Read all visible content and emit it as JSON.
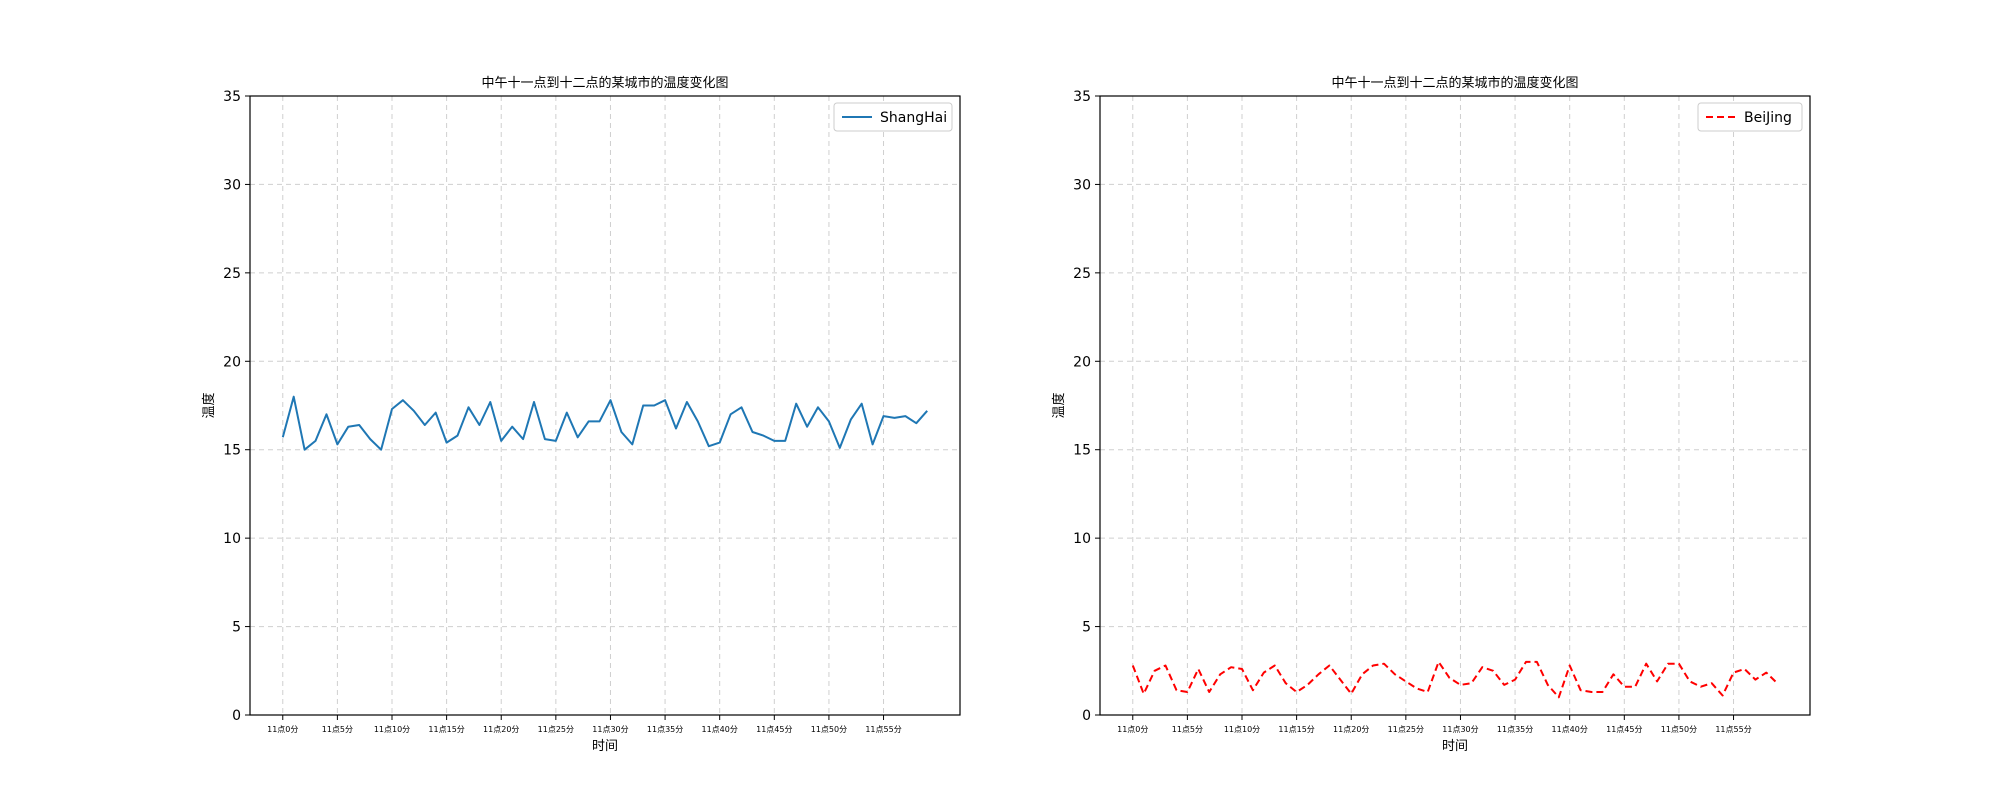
{
  "chart_data": [
    {
      "type": "line",
      "title": "中午十一点到十二点的某城市的温度变化图",
      "xlabel": "时间",
      "ylabel": "温度",
      "ylim": [
        0,
        35
      ],
      "yticks": [
        0,
        5,
        10,
        15,
        20,
        25,
        30,
        35
      ],
      "x": [
        0,
        1,
        2,
        3,
        4,
        5,
        6,
        7,
        8,
        9,
        10,
        11,
        12,
        13,
        14,
        15,
        16,
        17,
        18,
        19,
        20,
        21,
        22,
        23,
        24,
        25,
        26,
        27,
        28,
        29,
        30,
        31,
        32,
        33,
        34,
        35,
        36,
        37,
        38,
        39,
        40,
        41,
        42,
        43,
        44,
        45,
        46,
        47,
        48,
        49,
        50,
        51,
        52,
        53,
        54,
        55,
        56,
        57,
        58,
        59
      ],
      "xlim": [
        -3,
        62
      ],
      "xticks": [
        0,
        5,
        10,
        15,
        20,
        25,
        30,
        35,
        40,
        45,
        50,
        55
      ],
      "xtick_labels": [
        "11点0分",
        "11点5分",
        "11点10分",
        "11点15分",
        "11点20分",
        "11点25分",
        "11点30分",
        "11点35分",
        "11点40分",
        "11点45分",
        "11点50分",
        "11点55分"
      ],
      "grid": true,
      "legend_position": "upper right",
      "series": [
        {
          "name": "ShangHai",
          "color": "#1f77b4",
          "linestyle": "solid",
          "values": [
            15.7,
            18.0,
            15.0,
            15.5,
            17.0,
            15.3,
            16.3,
            16.4,
            15.6,
            15.0,
            17.3,
            17.8,
            17.2,
            16.4,
            17.1,
            15.4,
            15.8,
            17.4,
            16.4,
            17.7,
            15.5,
            16.3,
            15.6,
            17.7,
            15.6,
            15.5,
            17.1,
            15.7,
            16.6,
            16.6,
            17.8,
            16.0,
            15.3,
            17.5,
            17.5,
            17.8,
            16.2,
            17.7,
            16.6,
            15.2,
            15.4,
            17.0,
            17.4,
            16.0,
            15.8,
            15.5,
            15.5,
            17.6,
            16.3,
            17.4,
            16.6,
            15.1,
            16.7,
            17.6,
            15.3,
            16.9,
            16.8,
            16.9,
            16.5,
            17.2
          ]
        }
      ]
    },
    {
      "type": "line",
      "title": "中午十一点到十二点的某城市的温度变化图",
      "xlabel": "时间",
      "ylabel": "温度",
      "ylim": [
        0,
        35
      ],
      "yticks": [
        0,
        5,
        10,
        15,
        20,
        25,
        30,
        35
      ],
      "x": [
        0,
        1,
        2,
        3,
        4,
        5,
        6,
        7,
        8,
        9,
        10,
        11,
        12,
        13,
        14,
        15,
        16,
        17,
        18,
        19,
        20,
        21,
        22,
        23,
        24,
        25,
        26,
        27,
        28,
        29,
        30,
        31,
        32,
        33,
        34,
        35,
        36,
        37,
        38,
        39,
        40,
        41,
        42,
        43,
        44,
        45,
        46,
        47,
        48,
        49,
        50,
        51,
        52,
        53,
        54,
        55,
        56,
        57,
        58,
        59
      ],
      "xlim": [
        -3,
        62
      ],
      "xticks": [
        0,
        5,
        10,
        15,
        20,
        25,
        30,
        35,
        40,
        45,
        50,
        55
      ],
      "xtick_labels": [
        "11点0分",
        "11点5分",
        "11点10分",
        "11点15分",
        "11点20分",
        "11点25分",
        "11点30分",
        "11点35分",
        "11点40分",
        "11点45分",
        "11点50分",
        "11点55分"
      ],
      "grid": true,
      "legend_position": "upper right",
      "series": [
        {
          "name": "BeiJing",
          "color": "#ff0000",
          "linestyle": "dashed",
          "values": [
            2.8,
            1.2,
            2.5,
            2.8,
            1.4,
            1.3,
            2.6,
            1.3,
            2.3,
            2.7,
            2.6,
            1.4,
            2.4,
            2.8,
            1.8,
            1.3,
            1.7,
            2.3,
            2.8,
            2.0,
            1.2,
            2.3,
            2.8,
            2.9,
            2.3,
            1.9,
            1.5,
            1.3,
            3.0,
            2.1,
            1.7,
            1.8,
            2.7,
            2.5,
            1.7,
            2.0,
            3.0,
            3.0,
            1.7,
            1.0,
            2.8,
            1.4,
            1.3,
            1.3,
            2.3,
            1.6,
            1.6,
            2.9,
            1.9,
            2.9,
            2.9,
            1.9,
            1.6,
            1.8,
            1.1,
            2.4,
            2.6,
            2.0,
            2.4,
            1.8
          ]
        }
      ]
    }
  ]
}
